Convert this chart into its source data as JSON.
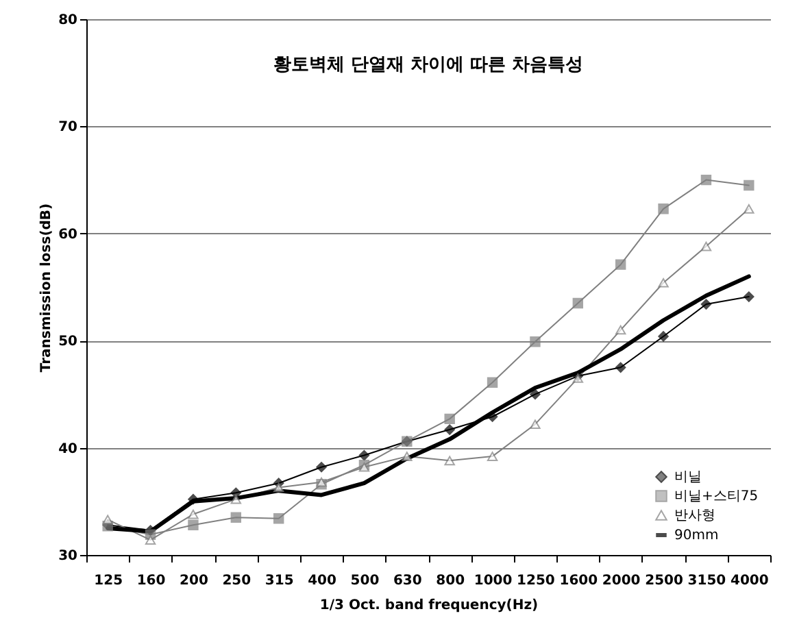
{
  "chart_data": {
    "type": "line",
    "title": "황토벽체 단열재 차이에 따른 차음특성",
    "xlabel": "1/3 Oct. band frequency(Hz)",
    "ylabel": "Transmission loss(dB)",
    "categories": [
      "125",
      "160",
      "200",
      "250",
      "315",
      "400",
      "500",
      "630",
      "800",
      "1000",
      "1250",
      "1600",
      "2000",
      "2500",
      "3150",
      "4000"
    ],
    "series": [
      {
        "name": "비닐",
        "color": "#000000",
        "marker": "diamond",
        "values": [
          32.8,
          32.3,
          35.2,
          35.8,
          36.7,
          38.2,
          39.3,
          40.6,
          41.7,
          42.9,
          45.0,
          46.7,
          47.5,
          50.4,
          53.4,
          54.1
        ]
      },
      {
        "name": "비닐+스티75",
        "color": "#808080",
        "marker": "square",
        "values": [
          32.7,
          31.9,
          32.8,
          33.5,
          33.4,
          36.6,
          38.4,
          40.6,
          42.7,
          46.1,
          49.9,
          53.5,
          57.1,
          62.3,
          65.0,
          64.5
        ]
      },
      {
        "name": "반사형",
        "color": "#808080",
        "marker": "triangle",
        "values": [
          33.3,
          31.4,
          33.8,
          35.2,
          36.3,
          36.8,
          38.2,
          39.2,
          38.8,
          39.2,
          42.2,
          46.5,
          51.0,
          55.4,
          58.8,
          62.3
        ]
      },
      {
        "name": "90mm",
        "color": "#000000",
        "marker": "none",
        "values": [
          32.5,
          32.2,
          35.0,
          35.3,
          36.0,
          35.6,
          36.7,
          39.0,
          40.8,
          43.3,
          45.6,
          47.0,
          49.2,
          51.9,
          54.2,
          56.0
        ]
      }
    ],
    "ylim": [
      30,
      80
    ],
    "yticks": [
      30,
      40,
      50,
      60,
      70,
      80
    ],
    "grid": "y",
    "legend": "bottom right"
  }
}
